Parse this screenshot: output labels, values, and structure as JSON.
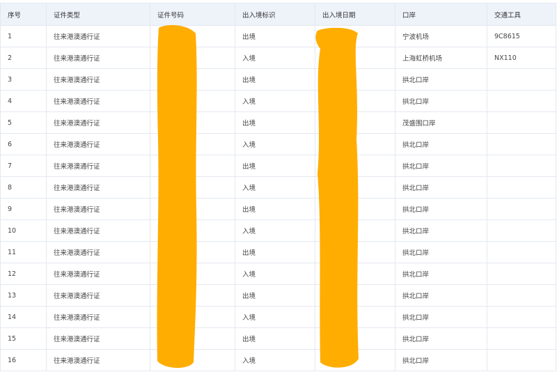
{
  "table": {
    "headers": [
      "序号",
      "证件类型",
      "证件号码",
      "出入境标识",
      "出入境日期",
      "口岸",
      "交通工具"
    ],
    "rows": [
      {
        "no": 1,
        "type": "往来港澳通行证",
        "direction": "出境",
        "port": "宁波机场",
        "transport": "9C8615"
      },
      {
        "no": 2,
        "type": "往来港澳通行证",
        "direction": "入境",
        "port": "上海虹桥机场",
        "transport": "NX110"
      },
      {
        "no": 3,
        "type": "往来港澳通行证",
        "direction": "出境",
        "port": "拱北口岸"
      },
      {
        "no": 4,
        "type": "往来港澳通行证",
        "direction": "入境",
        "port": "拱北口岸"
      },
      {
        "no": 5,
        "type": "往来港澳通行证",
        "direction": "出境",
        "port": "茂盛围口岸"
      },
      {
        "no": 6,
        "type": "往来港澳通行证",
        "direction": "入境",
        "port": "拱北口岸"
      },
      {
        "no": 7,
        "type": "往来港澳通行证",
        "direction": "出境",
        "port": "拱北口岸"
      },
      {
        "no": 8,
        "type": "往来港澳通行证",
        "direction": "入境",
        "port": "拱北口岸"
      },
      {
        "no": 9,
        "type": "往来港澳通行证",
        "direction": "出境",
        "port": "拱北口岸"
      },
      {
        "no": 10,
        "type": "往来港澳通行证",
        "direction": "入境",
        "port": "拱北口岸"
      },
      {
        "no": 11,
        "type": "往来港澳通行证",
        "direction": "出境",
        "port": "拱北口岸"
      },
      {
        "no": 12,
        "type": "往来港澳通行证",
        "direction": "入境",
        "port": "拱北口岸"
      },
      {
        "no": 13,
        "type": "往来港澳通行证",
        "direction": "出境",
        "port": "拱北口岸"
      },
      {
        "no": 14,
        "type": "往来港澳通行证",
        "direction": "入境",
        "port": "拱北口岸"
      },
      {
        "no": 15,
        "type": "往来港澳通行证",
        "direction": "出境",
        "port": "拱北口岸"
      },
      {
        "no": 16,
        "type": "往来港澳通行证",
        "direction": "入境",
        "port": "拱北口岸"
      }
    ]
  }
}
